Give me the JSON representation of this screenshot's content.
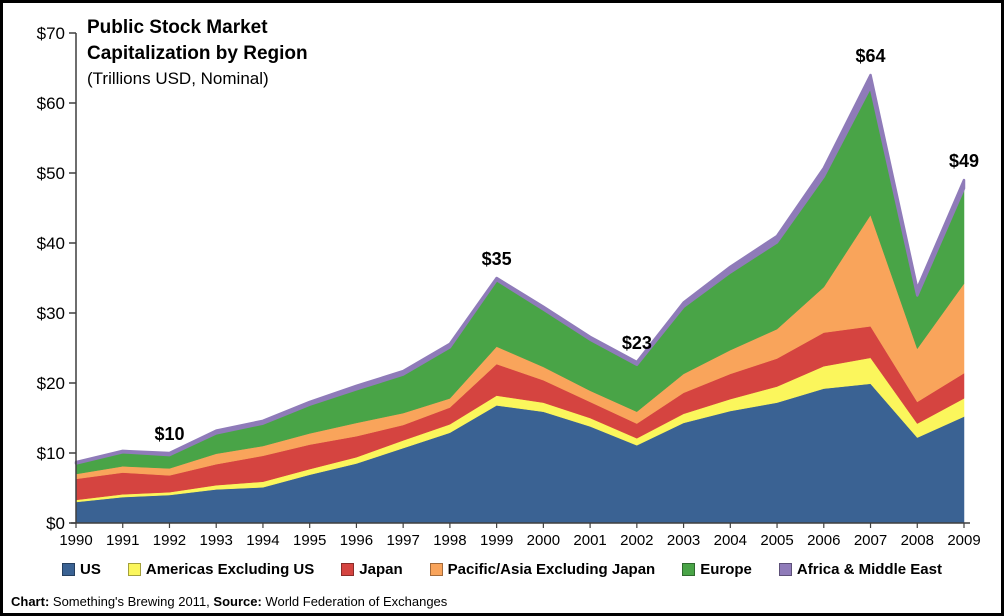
{
  "header": {
    "title_line1": "Public Stock Market",
    "title_line2": "Capitalization by Region",
    "subtitle": "(Trillions USD, Nominal)"
  },
  "footer": {
    "chart_label": "Chart:",
    "chart_value": " Something's Brewing 2011,",
    "source_label": " Source:",
    "source_value": " World Federation of Exchanges"
  },
  "chart_data": {
    "type": "area",
    "stacked": true,
    "title": "Public Stock Market Capitalization by Region",
    "subtitle": "(Trillions USD, Nominal)",
    "units": "Trillions USD, Nominal",
    "grid": false,
    "legend_position": "bottom",
    "xlabel": "",
    "ylabel": "",
    "ylim": [
      0,
      70
    ],
    "y_ticks": [
      {
        "value": 0,
        "label": "$0"
      },
      {
        "value": 10,
        "label": "$10"
      },
      {
        "value": 20,
        "label": "$20"
      },
      {
        "value": 30,
        "label": "$30"
      },
      {
        "value": 40,
        "label": "$40"
      },
      {
        "value": 50,
        "label": "$50"
      },
      {
        "value": 60,
        "label": "$60"
      },
      {
        "value": 70,
        "label": "$70"
      }
    ],
    "years": [
      "1990",
      "1991",
      "1992",
      "1993",
      "1994",
      "1995",
      "1996",
      "1997",
      "1998",
      "1999",
      "2000",
      "2001",
      "2002",
      "2003",
      "2004",
      "2005",
      "2006",
      "2007",
      "2008",
      "2009"
    ],
    "series": [
      {
        "id": "us",
        "name": "US",
        "color": "#3A6293",
        "values": [
          3.0,
          3.7,
          4.0,
          4.8,
          5.1,
          6.9,
          8.5,
          10.7,
          12.9,
          16.8,
          15.9,
          13.8,
          11.1,
          14.3,
          16.0,
          17.2,
          19.2,
          19.9,
          12.2,
          15.2
        ]
      },
      {
        "id": "americas-ex-us",
        "name": "Americas Excluding US",
        "color": "#FBF65C",
        "values": [
          0.3,
          0.4,
          0.4,
          0.6,
          0.8,
          0.8,
          0.9,
          1.1,
          1.2,
          1.4,
          1.3,
          1.2,
          1.0,
          1.3,
          1.7,
          2.3,
          3.2,
          3.7,
          2.0,
          2.6
        ]
      },
      {
        "id": "japan",
        "name": "Japan",
        "color": "#D54440",
        "values": [
          3.0,
          3.1,
          2.4,
          3.0,
          3.7,
          3.5,
          3.0,
          2.2,
          2.4,
          4.5,
          3.2,
          2.3,
          2.1,
          3.0,
          3.6,
          4.0,
          4.8,
          4.5,
          3.1,
          3.6
        ]
      },
      {
        "id": "pacific-asia-ex-japan",
        "name": "Pacific/Asia Excluding Japan",
        "color": "#F9A45B",
        "values": [
          0.7,
          0.9,
          1.0,
          1.5,
          1.4,
          1.6,
          1.9,
          1.7,
          1.3,
          2.5,
          1.9,
          1.6,
          1.7,
          2.7,
          3.4,
          4.2,
          6.5,
          15.9,
          7.6,
          12.8
        ]
      },
      {
        "id": "europe",
        "name": "Europe",
        "color": "#49A447",
        "values": [
          1.5,
          2.0,
          1.9,
          2.9,
          3.2,
          4.1,
          4.8,
          5.5,
          7.3,
          9.5,
          8.2,
          7.3,
          6.7,
          9.6,
          11.1,
          12.4,
          15.8,
          18.3,
          7.6,
          13.6
        ]
      },
      {
        "id": "africa-middle-east",
        "name": "Africa & Middle East",
        "color": "#8F7BB9",
        "values": [
          0.2,
          0.2,
          0.3,
          0.4,
          0.4,
          0.4,
          0.5,
          0.5,
          0.5,
          0.3,
          0.4,
          0.4,
          0.4,
          0.6,
          0.8,
          0.9,
          1.2,
          1.7,
          1.0,
          1.2
        ]
      }
    ],
    "annotations": [
      {
        "year": "1992",
        "label": "$10"
      },
      {
        "year": "1999",
        "label": "$35"
      },
      {
        "year": "2002",
        "label": "$23"
      },
      {
        "year": "2007",
        "label": "$64"
      },
      {
        "year": "2009",
        "label": "$49"
      }
    ]
  }
}
